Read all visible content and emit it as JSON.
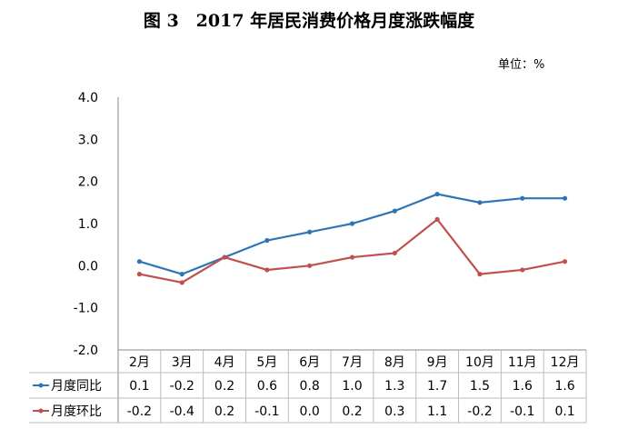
{
  "chart_data": {
    "type": "line",
    "title": "图 3　2017 年居民消费价格月度涨跌幅度",
    "unit_label": "单位：%",
    "categories": [
      "2月",
      "3月",
      "4月",
      "5月",
      "6月",
      "7月",
      "8月",
      "9月",
      "10月",
      "11月",
      "12月"
    ],
    "ylim": [
      -2.0,
      4.0
    ],
    "yticks": [
      "4.0",
      "3.0",
      "2.0",
      "1.0",
      "0.0",
      "-1.0",
      "-2.0"
    ],
    "grid": false,
    "legend": "data-table",
    "series": [
      {
        "name": "月度同比",
        "color": "#2E75B6",
        "values": [
          0.1,
          -0.2,
          0.2,
          0.6,
          0.8,
          1.0,
          1.3,
          1.7,
          1.5,
          1.6,
          1.6
        ],
        "labels": [
          "0.1",
          "-0.2",
          "0.2",
          "0.6",
          "0.8",
          "1.0",
          "1.3",
          "1.7",
          "1.5",
          "1.6",
          "1.6"
        ]
      },
      {
        "name": "月度环比",
        "color": "#C0504D",
        "values": [
          -0.2,
          -0.4,
          0.2,
          -0.1,
          0.0,
          0.2,
          0.3,
          1.1,
          -0.2,
          -0.1,
          0.1
        ],
        "labels": [
          "-0.2",
          "-0.4",
          "0.2",
          "-0.1",
          "0.0",
          "0.2",
          "0.3",
          "1.1",
          "-0.2",
          "-0.1",
          "0.1"
        ]
      }
    ]
  }
}
